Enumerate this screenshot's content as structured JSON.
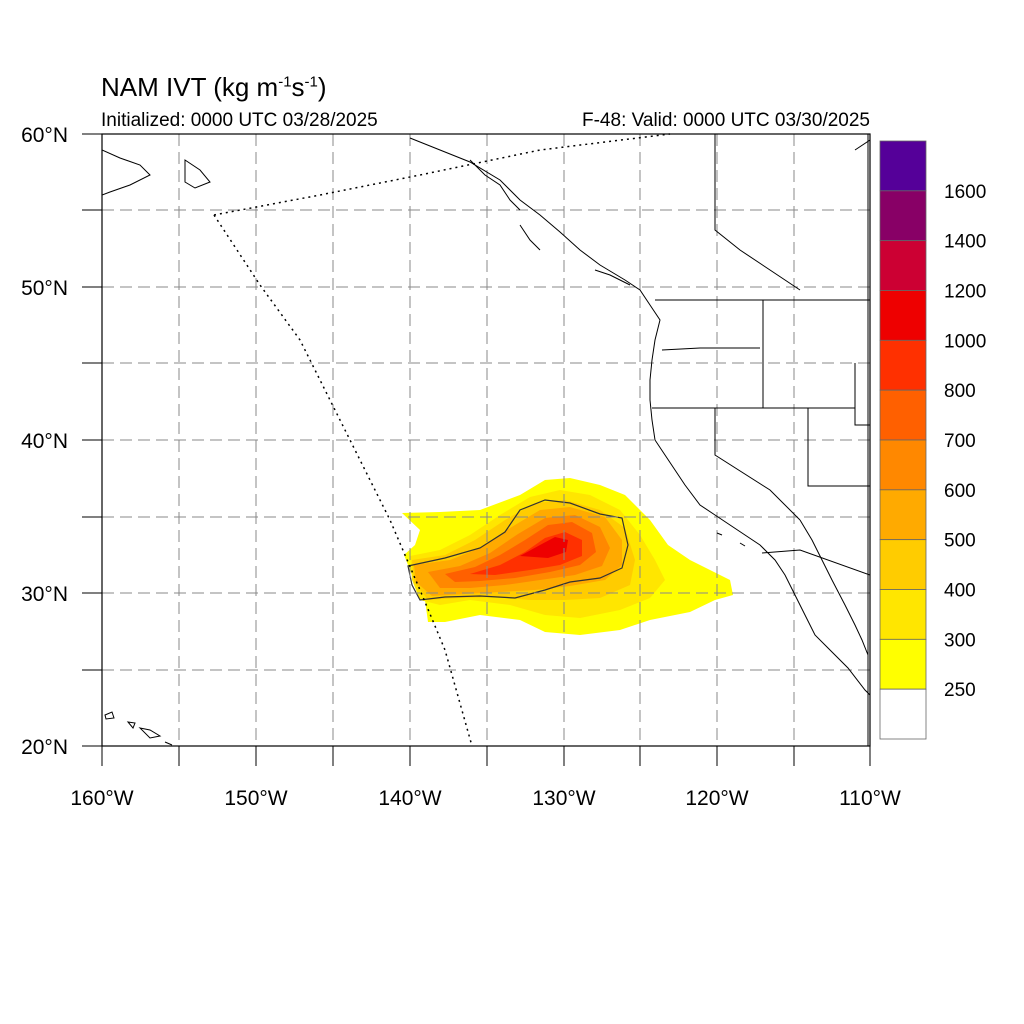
{
  "header": {
    "title_prefix": "NAM IVT (kg m",
    "title_exp1": "-1",
    "title_mid": "s",
    "title_exp2": "-1",
    "title_suffix": ")",
    "initialized": "Initialized: 0000 UTC 03/28/2025",
    "valid": "F-48: Valid: 0000 UTC 03/30/2025"
  },
  "axes": {
    "lon_range": [
      -160,
      -110
    ],
    "lat_range": [
      20,
      60
    ],
    "x_ticks": [
      "160°W",
      "150°W",
      "140°W",
      "130°W",
      "120°W",
      "110°W"
    ],
    "y_ticks": [
      "20°N",
      "30°N",
      "40°N",
      "50°N",
      "60°N"
    ],
    "grid": "dashed every 5 degrees"
  },
  "colorbar": {
    "labels": [
      "250",
      "300",
      "400",
      "500",
      "600",
      "700",
      "800",
      "1000",
      "1200",
      "1400",
      "1600"
    ],
    "colors": [
      "#ffffff",
      "#ffff00",
      "#ffe600",
      "#ffcc00",
      "#ffaa00",
      "#ff8800",
      "#ff6000",
      "#ff3000",
      "#ee0000",
      "#cc0033",
      "#880066",
      "#550099"
    ]
  },
  "colors": {
    "land_lines": "#000000",
    "grid": "#888888"
  }
}
